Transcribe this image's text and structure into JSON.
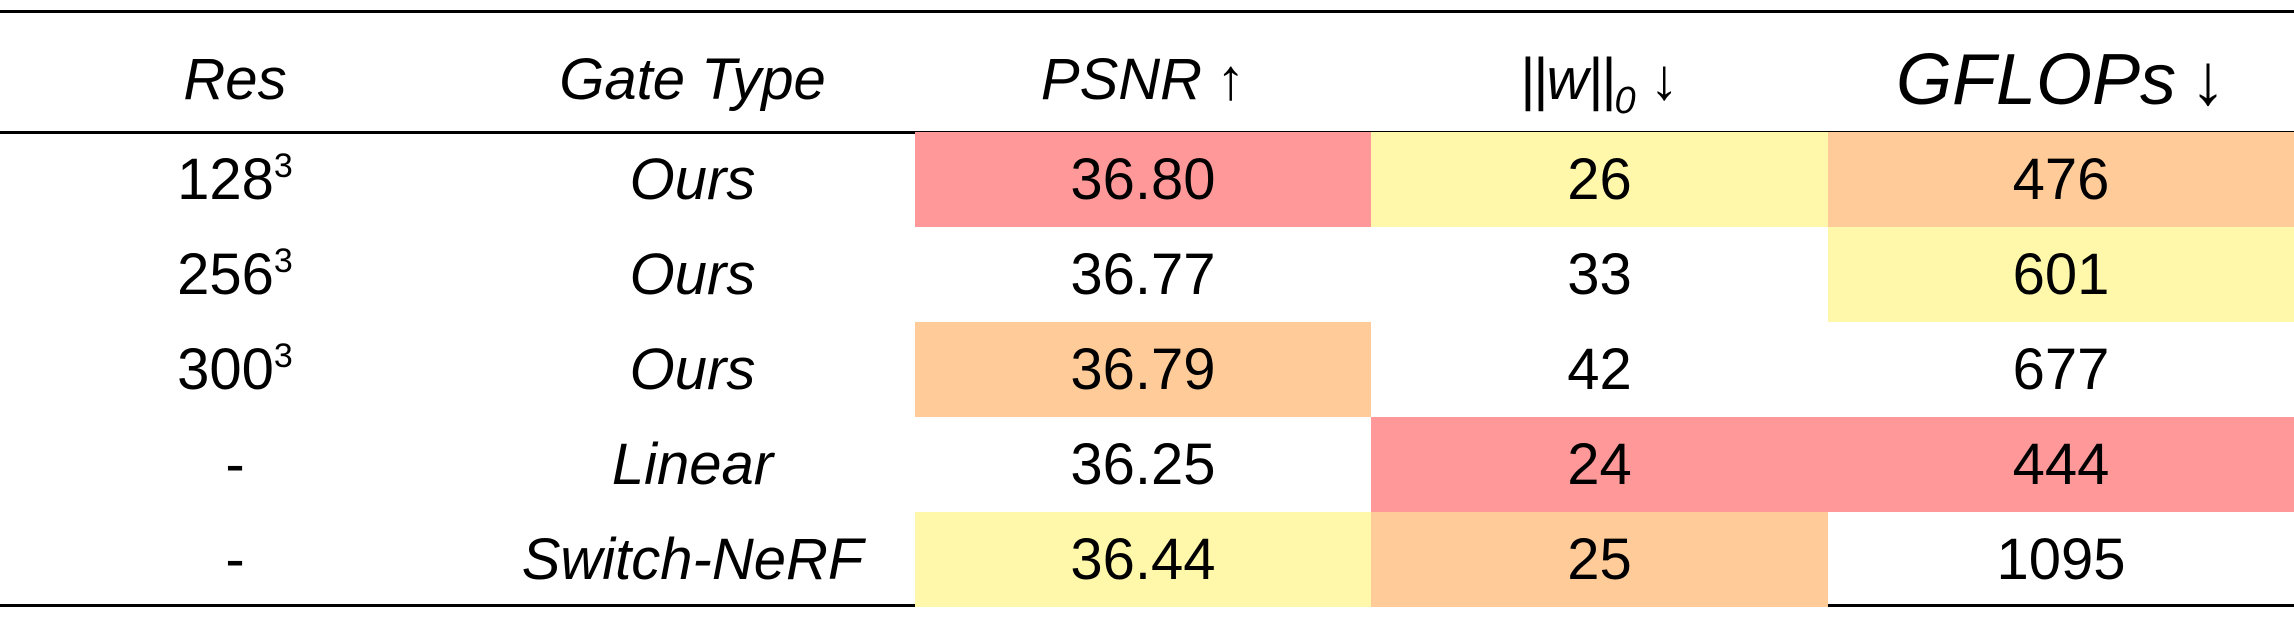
{
  "table": {
    "headers": {
      "res": "Res",
      "gate_type": "Gate Type",
      "psnr": "PSNR",
      "psnr_arrow": "↑",
      "w_bars": "||",
      "w_var": "w",
      "w_sub": "0",
      "w_arrow": "↓",
      "gflops": "GFLOPs",
      "gflops_arrow": "↓"
    },
    "rows": [
      {
        "res_base": "128",
        "res_exp": "3",
        "gate": "Ours",
        "psnr": "36.80",
        "w0": "26",
        "gflops": "476"
      },
      {
        "res_base": "256",
        "res_exp": "3",
        "gate": "Ours",
        "psnr": "36.77",
        "w0": "33",
        "gflops": "601"
      },
      {
        "res_base": "300",
        "res_exp": "3",
        "gate": "Ours",
        "psnr": "36.79",
        "w0": "42",
        "gflops": "677"
      },
      {
        "res_base": "-",
        "res_exp": "",
        "gate": "Linear",
        "psnr": "36.25",
        "w0": "24",
        "gflops": "444"
      },
      {
        "res_base": "-",
        "res_exp": "",
        "gate": "Switch-NeRF",
        "psnr": "36.44",
        "w0": "25",
        "gflops": "1095"
      }
    ],
    "highlight_colors": {
      "first": "#ff9999",
      "second": "#ffcc99",
      "third": "#fff8aa"
    }
  }
}
